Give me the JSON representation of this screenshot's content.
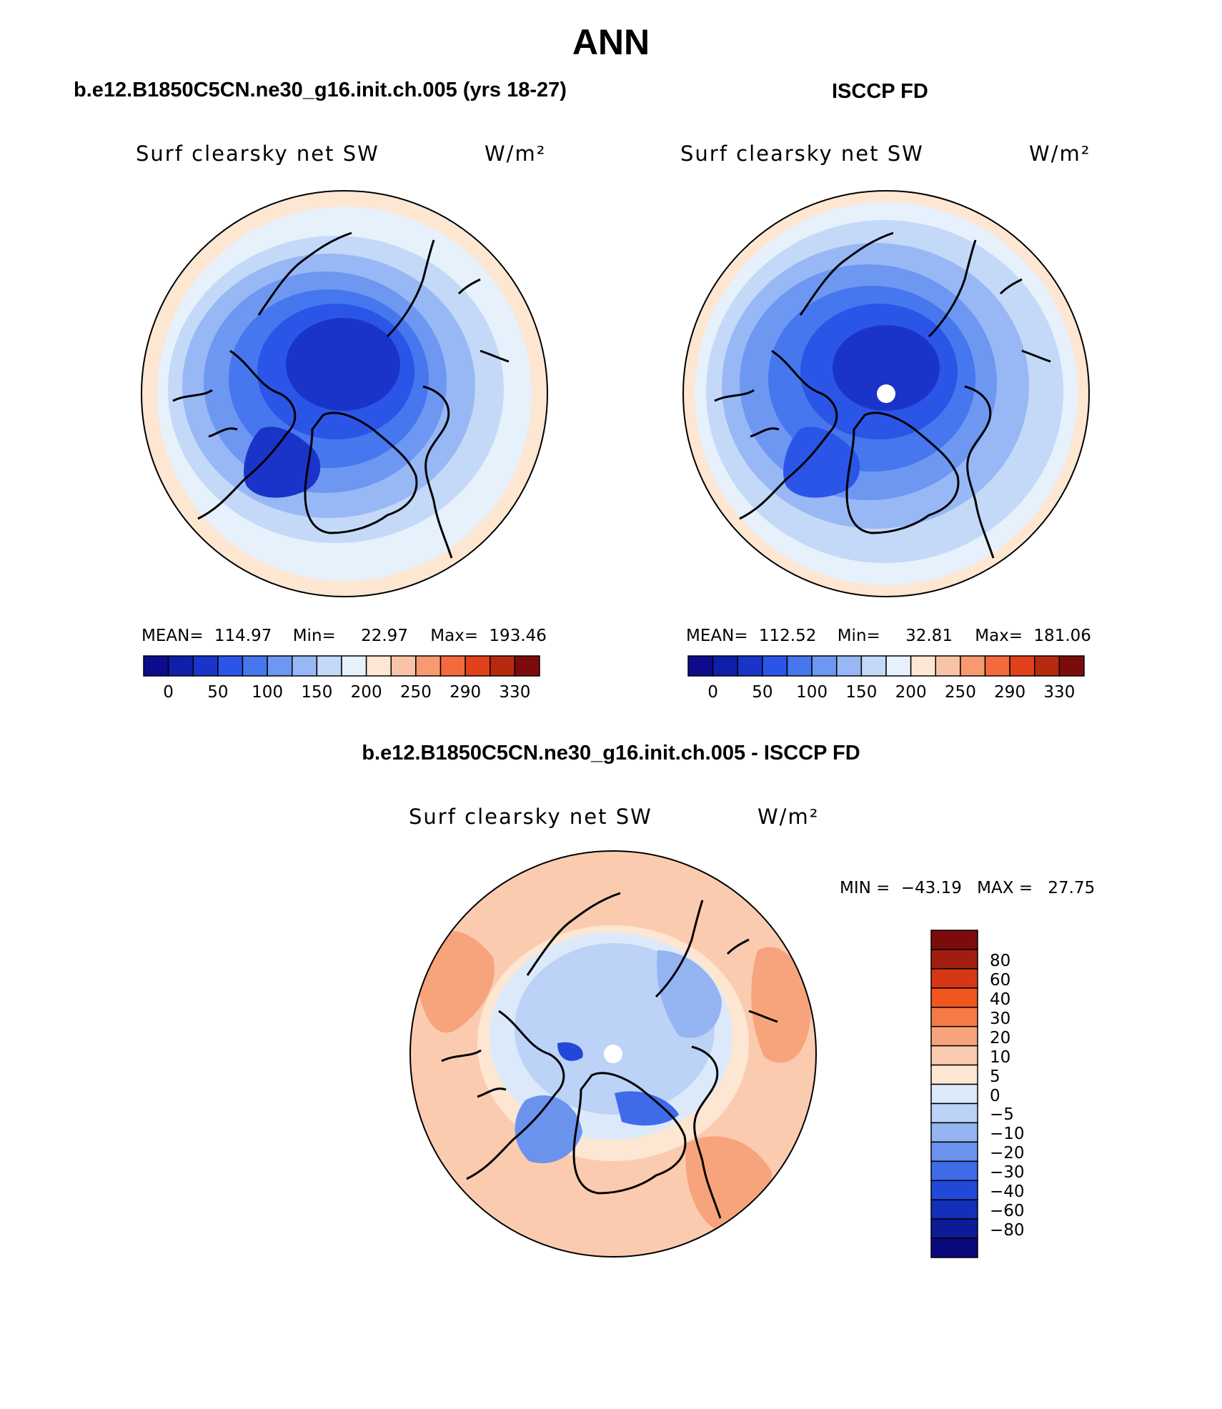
{
  "title": "ANN",
  "panels": [
    {
      "case_title": "b.e12.B1850C5CN.ne30_g16.init.ch.005 (yrs 18-27)",
      "variable": "Surf clearsky net SW",
      "units": "W/m²",
      "stats": {
        "mean_label": "MEAN=",
        "mean": "114.97",
        "min_label": "Min=",
        "min": "22.97",
        "max_label": "Max=",
        "max": "193.46"
      }
    },
    {
      "case_title": "ISCCP FD",
      "variable": "Surf clearsky net SW",
      "units": "W/m²",
      "stats": {
        "mean_label": "MEAN=",
        "mean": "112.52",
        "min_label": "Min=",
        "min": "32.81",
        "max_label": "Max=",
        "max": "181.06"
      }
    }
  ],
  "abs_colorbar": {
    "colors": [
      "#0c0c8c",
      "#0f1fa8",
      "#1a34c9",
      "#2b55e6",
      "#4677ee",
      "#6e97f2",
      "#98b8f5",
      "#c4d9f8",
      "#e6f1fb",
      "#fde6d2",
      "#f9c4a6",
      "#f79a72",
      "#f26a3e",
      "#e3411b",
      "#b82a10",
      "#7c0c0c"
    ],
    "ticks": [
      "0",
      "50",
      "100",
      "150",
      "200",
      "250",
      "290",
      "330"
    ]
  },
  "diff_panel": {
    "case_title": "b.e12.B1850C5CN.ne30_g16.init.ch.005 - ISCCP FD",
    "variable": "Surf clearsky net SW",
    "units": "W/m²",
    "min_label": "MIN =",
    "min": "−43.19",
    "max_label": "MAX =",
    "max": "27.75"
  },
  "diff_colorbar": {
    "colors": [
      "#7c0c0c",
      "#a11d10",
      "#d63714",
      "#f0561e",
      "#f47a47",
      "#f7a47c",
      "#fbcbb0",
      "#fde6d2",
      "#dce9fa",
      "#bcd2f6",
      "#94b4f2",
      "#6b93ee",
      "#3f6ae8",
      "#2148d9",
      "#1330b8",
      "#0c1c96",
      "#0a0a7c"
    ],
    "ticks": [
      "80",
      "60",
      "40",
      "30",
      "20",
      "10",
      "5",
      "0",
      "−5",
      "−10",
      "−20",
      "−30",
      "−40",
      "−60",
      "−80"
    ]
  },
  "colors": {
    "land_outline": "#000000",
    "missing_pole": "#ffffff"
  }
}
